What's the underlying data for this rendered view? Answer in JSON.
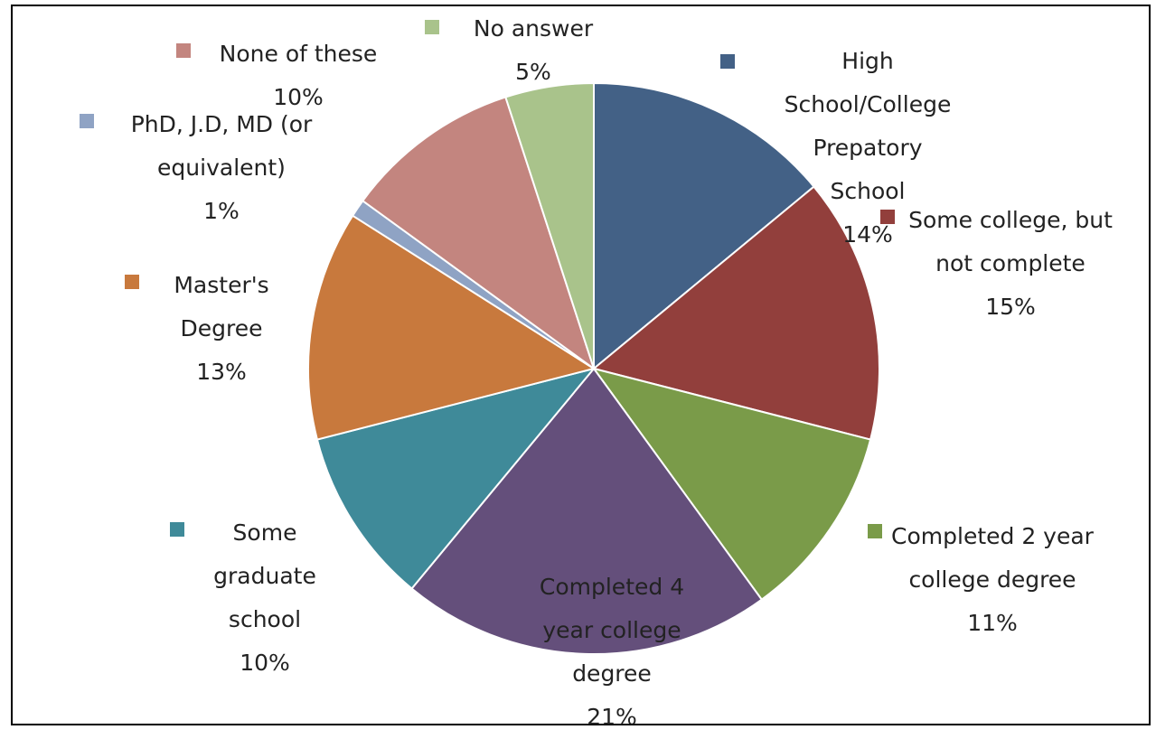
{
  "chart_data": {
    "type": "pie",
    "categories": [
      "High School/College Prepatory School",
      "Some college, but not complete",
      "Completed 2 year college degree",
      "Completed 4 year college degree",
      "Some graduate school",
      "Master's Degree",
      "PhD, J.D, MD (or equivalent)",
      "None of these",
      "No answer"
    ],
    "values": [
      14,
      15,
      11,
      21,
      10,
      13,
      1,
      10,
      5
    ],
    "value_labels": [
      "14%",
      "15%",
      "11%",
      "21%",
      "10%",
      "13%",
      "1%",
      "10%",
      "5%"
    ],
    "colors": [
      "#436186",
      "#923f3c",
      "#7a9b49",
      "#644f7b",
      "#3f8a99",
      "#c8793d",
      "#8fa3c4",
      "#c3857f",
      "#a9c38b"
    ]
  }
}
